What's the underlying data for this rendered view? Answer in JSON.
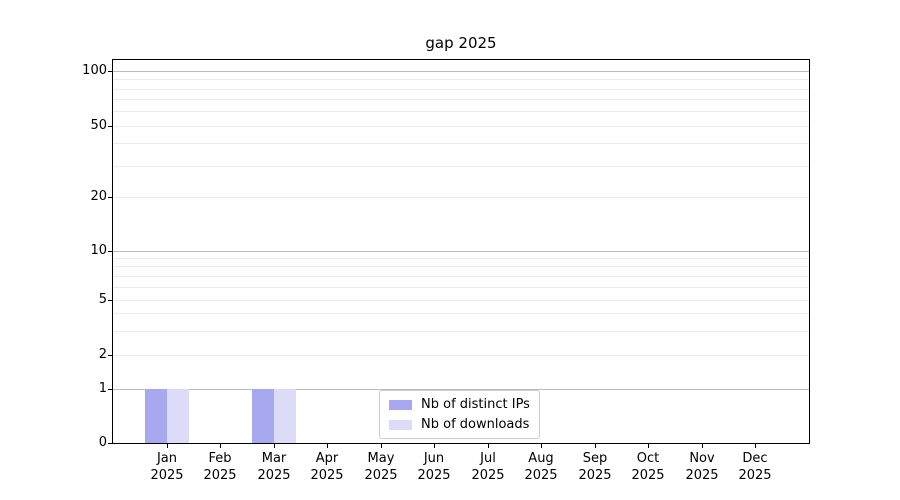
{
  "chart_data": {
    "type": "bar",
    "title": "gap 2025",
    "categories": [
      {
        "label": "Jan",
        "year": "2025"
      },
      {
        "label": "Feb",
        "year": "2025"
      },
      {
        "label": "Mar",
        "year": "2025"
      },
      {
        "label": "Apr",
        "year": "2025"
      },
      {
        "label": "May",
        "year": "2025"
      },
      {
        "label": "Jun",
        "year": "2025"
      },
      {
        "label": "Jul",
        "year": "2025"
      },
      {
        "label": "Aug",
        "year": "2025"
      },
      {
        "label": "Sep",
        "year": "2025"
      },
      {
        "label": "Oct",
        "year": "2025"
      },
      {
        "label": "Nov",
        "year": "2025"
      },
      {
        "label": "Dec",
        "year": "2025"
      }
    ],
    "series": [
      {
        "id": "distinct-ips",
        "name": "Nb of distinct IPs",
        "color": "#a8a8f0",
        "values": [
          1,
          0,
          1,
          0,
          0,
          0,
          0,
          0,
          0,
          0,
          0,
          0
        ]
      },
      {
        "id": "downloads",
        "name": "Nb of downloads",
        "color": "#dcdcf8",
        "values": [
          1,
          0,
          1,
          0,
          0,
          0,
          0,
          0,
          0,
          0,
          0,
          0
        ]
      }
    ],
    "yticks": [
      0,
      1,
      2,
      5,
      10,
      20,
      50,
      100
    ],
    "ylim": [
      0,
      115
    ],
    "y_scale": "symlog",
    "grid": "y",
    "grid_major_values": [
      1,
      10,
      100
    ],
    "grid_minor_values": [
      2,
      3,
      4,
      5,
      6,
      7,
      8,
      9,
      20,
      30,
      40,
      50,
      60,
      70,
      80,
      90
    ],
    "legend_position": "lower-center-inside",
    "colors": {
      "grid_major": "#bbbbbb",
      "grid_minor": "#ececec",
      "axis": "#000000",
      "text": "#000000",
      "background": "#ffffff"
    }
  }
}
